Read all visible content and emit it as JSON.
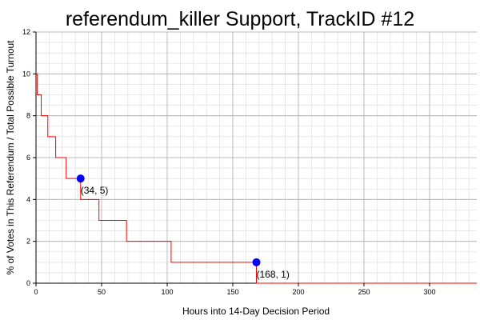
{
  "chart_data": {
    "type": "line",
    "title": "referendum_killer Support, TrackID #12",
    "xlabel": "Hours into 14-Day Decision Period",
    "ylabel": "% of Votes in This Referendum / Total Possible Turnout",
    "xlim": [
      0,
      336
    ],
    "ylim": [
      0,
      12
    ],
    "x_ticks": [
      0,
      50,
      100,
      150,
      200,
      250,
      300
    ],
    "y_ticks": [
      0,
      2,
      4,
      6,
      8,
      10,
      12
    ],
    "grid": true,
    "line_color": "#ff0000",
    "marker_color": "#0000ff",
    "series": [
      {
        "step_points": [
          [
            0,
            10
          ],
          [
            1,
            10
          ],
          [
            1,
            9
          ],
          [
            4,
            9
          ],
          [
            4,
            8
          ],
          [
            9,
            8
          ],
          [
            9,
            7
          ],
          [
            15,
            7
          ],
          [
            15,
            6
          ],
          [
            23,
            6
          ],
          [
            23,
            5
          ],
          [
            34,
            5
          ],
          [
            34,
            4
          ],
          [
            48,
            4
          ],
          [
            48,
            3
          ],
          [
            69,
            3
          ],
          [
            69,
            2
          ],
          [
            103,
            2
          ],
          [
            103,
            1
          ],
          [
            168,
            1
          ],
          [
            168,
            0
          ],
          [
            336,
            0
          ]
        ]
      }
    ],
    "annotations": [
      {
        "x": 34,
        "y": 5,
        "label": "(34, 5)"
      },
      {
        "x": 168,
        "y": 1,
        "label": "(168, 1)"
      }
    ]
  }
}
